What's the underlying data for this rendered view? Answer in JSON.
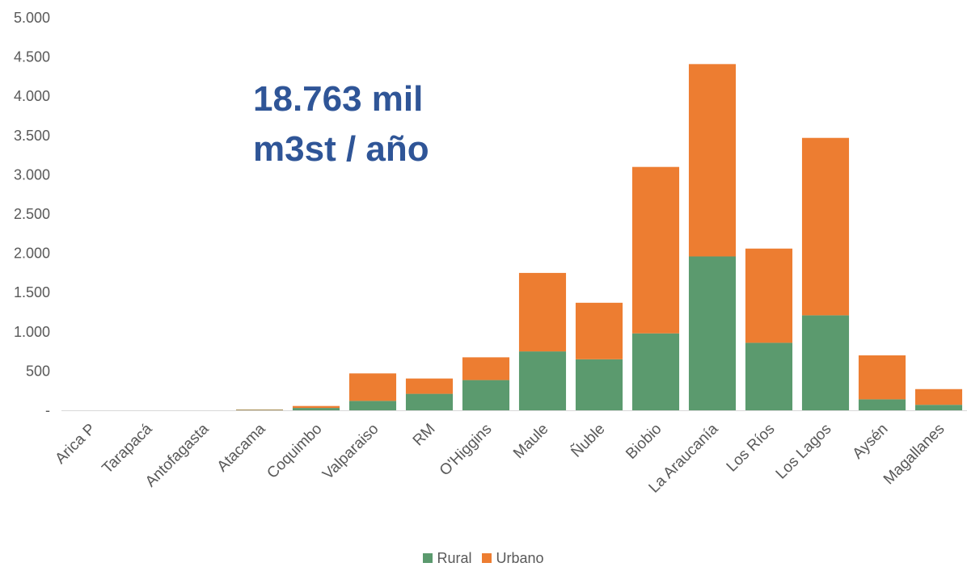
{
  "chart_data": {
    "type": "bar",
    "stacked": true,
    "annotation": [
      "18.763 mil",
      "m3st / año"
    ],
    "categories": [
      "Arica P",
      "Tarapacá",
      "Antofagasta",
      "Atacama",
      "Coquimbo",
      "Valparaiso",
      "RM",
      "O'Higgins",
      "Maule",
      "Ñuble",
      "Biobio",
      "La Araucanía",
      "Los Ríos",
      "Los Lagos",
      "Aysén",
      "Magallanes"
    ],
    "series": [
      {
        "name": "Rural",
        "color": "#5B9A6E",
        "values": [
          0,
          0,
          0,
          5,
          30,
          120,
          210,
          385,
          750,
          650,
          980,
          1960,
          860,
          1210,
          140,
          70
        ]
      },
      {
        "name": "Urbano",
        "color": "#ED7D31",
        "values": [
          0,
          0,
          0,
          5,
          25,
          350,
          195,
          290,
          1000,
          720,
          2120,
          2450,
          1200,
          2260,
          560,
          200
        ]
      }
    ],
    "y_ticks": [
      "-",
      "500",
      "1.000",
      "1.500",
      "2.000",
      "2.500",
      "3.000",
      "3.500",
      "4.000",
      "4.500",
      "5.000"
    ],
    "ylim": [
      0,
      5000
    ],
    "grid": false,
    "legend_position": "bottom"
  }
}
